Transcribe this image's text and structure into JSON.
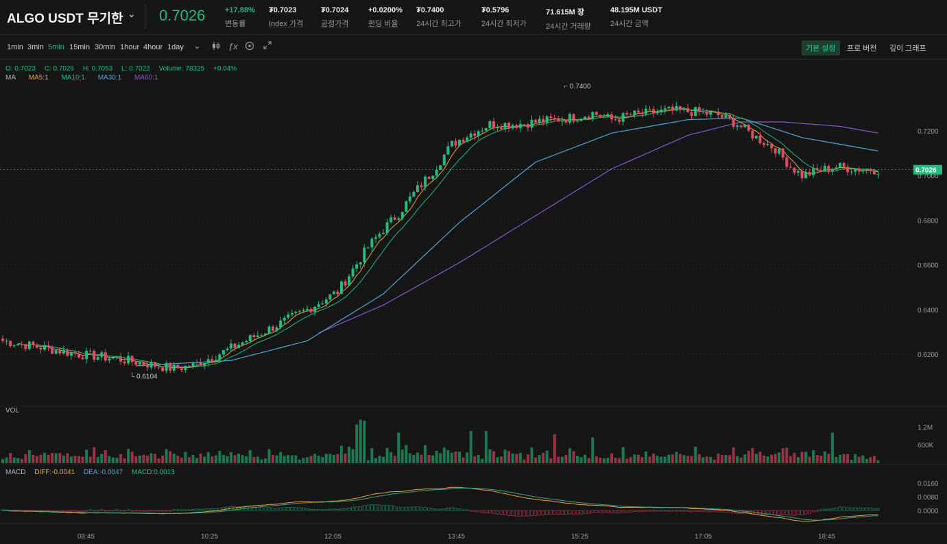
{
  "header": {
    "pair": "ALGO USDT 무기한",
    "last_price": "0.7026",
    "stats": [
      {
        "value": "+17.88%",
        "label": "변동률",
        "up": true
      },
      {
        "value": "₮0.7023",
        "label": "Index 가격",
        "underline": true
      },
      {
        "value": "₮0.7024",
        "label": "공정가격",
        "underline": true
      },
      {
        "value": "+0.0200%",
        "label": "펀딩 비율",
        "underline": true
      },
      {
        "value": "₮0.7400",
        "label": "24시간 최고가"
      },
      {
        "value": "₮0.5796",
        "label": "24시간 최저가"
      },
      {
        "value": "71.615M 장",
        "label": "24시간 거래량"
      },
      {
        "value": "48.195M USDT",
        "label": "24시간 금액"
      }
    ]
  },
  "toolbar": {
    "timeframes": [
      "1min",
      "3min",
      "5min",
      "15min",
      "30min",
      "1hour",
      "4hour",
      "1day"
    ],
    "active_timeframe": "5min",
    "tools": [
      "chevron-down-icon",
      "candlestick-icon",
      "formula-icon",
      "settings-icon",
      "expand-icon"
    ],
    "views": [
      "기본 설정",
      "프로 버전",
      "깊이 그래프"
    ],
    "active_view": "기본 설정"
  },
  "legend": {
    "ohlc": {
      "o": "O: 0.7023",
      "c": "C: 0.7026",
      "h": "H: 0.7053",
      "l": "L: 0.7022",
      "volume": "Volume: 78325",
      "change": "+0.04%"
    },
    "ma": {
      "label": "MA",
      "ma5": "MA5:1",
      "ma10": "MA10:1",
      "ma30": "MA30:1",
      "ma60": "MA60:1"
    }
  },
  "volume_panel": {
    "label": "VOL"
  },
  "macd_panel": {
    "label": "MACD",
    "diff": "DIFF:-0.0041",
    "dea": "DEA:-0.0047",
    "macd": "MACD:0.0013"
  },
  "colors": {
    "up": "#1fbd7f",
    "down": "#e04d64",
    "ma5": "#f0a63a",
    "ma10": "#1fbd7f",
    "ma30": "#4ea8d8",
    "ma60": "#8a55d8",
    "accent": "#1fbd7f"
  },
  "chart_data": {
    "type": "candlestick",
    "price_axis_ticks": [
      0.62,
      0.64,
      0.66,
      0.68,
      0.7,
      0.72
    ],
    "price_axis_labels": [
      "0.6200",
      "0.6400",
      "0.6600",
      "0.6800",
      "0.7000",
      "0.7200"
    ],
    "current_price_label": "0.7026",
    "volume_axis_labels": [
      "1.2M",
      "600K"
    ],
    "macd_axis_labels": [
      "0.0160",
      "0.0080",
      "0.0000"
    ],
    "macd_axis_ticks": [
      0.016,
      0.008,
      0.0
    ],
    "time_labels": [
      "08:45",
      "10:25",
      "12:05",
      "13:45",
      "15:25",
      "17:05",
      "18:45"
    ],
    "high_marker": "0.7400",
    "low_marker": "0.6104",
    "close_path": [
      [
        0,
        0.626
      ],
      [
        10,
        0.623
      ],
      [
        20,
        0.62
      ],
      [
        30,
        0.618
      ],
      [
        40,
        0.615
      ],
      [
        45,
        0.6135
      ],
      [
        50,
        0.615
      ],
      [
        58,
        0.621
      ],
      [
        65,
        0.627
      ],
      [
        72,
        0.633
      ],
      [
        80,
        0.64
      ],
      [
        88,
        0.648
      ],
      [
        92,
        0.658
      ],
      [
        96,
        0.668
      ],
      [
        100,
        0.676
      ],
      [
        104,
        0.683
      ],
      [
        108,
        0.692
      ],
      [
        113,
        0.702
      ],
      [
        118,
        0.714
      ],
      [
        122,
        0.718
      ],
      [
        128,
        0.723
      ],
      [
        135,
        0.723
      ],
      [
        140,
        0.724
      ],
      [
        150,
        0.726
      ],
      [
        155,
        0.728
      ],
      [
        160,
        0.725
      ],
      [
        165,
        0.727
      ],
      [
        170,
        0.728
      ],
      [
        175,
        0.729
      ],
      [
        182,
        0.7285
      ],
      [
        188,
        0.727
      ],
      [
        193,
        0.723
      ],
      [
        198,
        0.717
      ],
      [
        203,
        0.712
      ],
      [
        207,
        0.704
      ],
      [
        210,
        0.7
      ],
      [
        214,
        0.702
      ],
      [
        219,
        0.704
      ],
      [
        224,
        0.703
      ],
      [
        230,
        0.7026
      ]
    ],
    "ma30_path": [
      [
        35,
        0.6148
      ],
      [
        60,
        0.6172
      ],
      [
        80,
        0.626
      ],
      [
        100,
        0.647
      ],
      [
        120,
        0.679
      ],
      [
        140,
        0.706
      ],
      [
        160,
        0.719
      ],
      [
        180,
        0.725
      ],
      [
        194,
        0.7258
      ],
      [
        210,
        0.717
      ],
      [
        230,
        0.711
      ]
    ],
    "ma60_path": [
      [
        83,
        0.6295
      ],
      [
        100,
        0.642
      ],
      [
        120,
        0.661
      ],
      [
        140,
        0.682
      ],
      [
        160,
        0.703
      ],
      [
        180,
        0.718
      ],
      [
        194,
        0.724
      ],
      [
        205,
        0.724
      ],
      [
        220,
        0.722
      ],
      [
        230,
        0.719
      ]
    ],
    "volume_spikes": [
      [
        93,
        1.2
      ],
      [
        94,
        1.35
      ],
      [
        95,
        1.32
      ],
      [
        104,
        0.95
      ],
      [
        123,
        1.0
      ],
      [
        127,
        1.0
      ],
      [
        145,
        0.9
      ],
      [
        155,
        0.8
      ],
      [
        218,
        0.95
      ]
    ],
    "candle_count": 231
  }
}
